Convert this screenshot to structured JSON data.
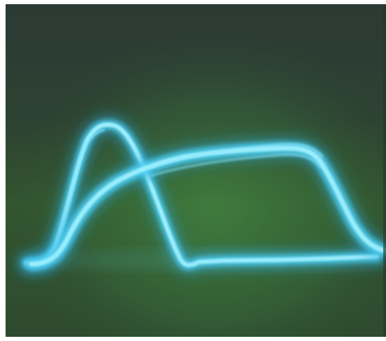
{
  "photo": {
    "subject": "oscilloscope-screen-two-traces",
    "screen_color_top": "#2c3a34",
    "screen_color_mid": "#2f4a33",
    "screen_glow_color": "#3f8a44",
    "trace_glow_color": "#35b8e0",
    "trace_core_color": "#9ef2ff",
    "border_color": "#ffffff",
    "traces": [
      {
        "name": "narrow-peak-pulse",
        "shape": "fast rise to early peak then fast fall to low baseline"
      },
      {
        "name": "flat-top-pulse",
        "shape": "gradual rise to long flat plateau then fall at right edge"
      }
    ]
  }
}
